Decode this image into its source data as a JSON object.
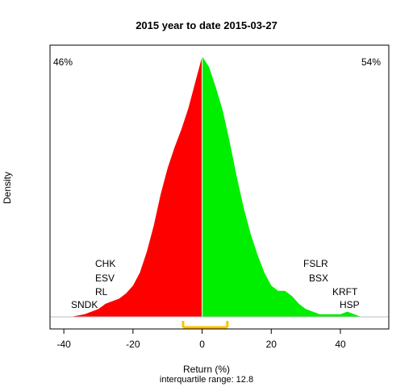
{
  "chart_data": {
    "type": "area",
    "title": "2015  year to date 2015-03-27",
    "xlabel": "Return (%)",
    "ylabel": "Density",
    "subtitle": "interquartile range: 12.8",
    "xlim": [
      -44,
      54
    ],
    "ylim": [
      0,
      1
    ],
    "x_ticks": [
      "-40",
      "-20",
      "0",
      "20",
      "40"
    ],
    "x_tick_values": [
      -40,
      -20,
      0,
      20,
      40
    ],
    "grid": false,
    "negative_share": "46%",
    "positive_share": "54%",
    "colors": {
      "negative": "#ff0000",
      "positive": "#00ee00",
      "iqr_bar": "#ffc000",
      "axis": "#000000",
      "baseline": "#bebebe"
    },
    "interquartile_range": {
      "low": -5.5,
      "high": 7.3,
      "value": 12.8
    },
    "density_curve": [
      {
        "x": -38,
        "y": 0.0
      },
      {
        "x": -34,
        "y": 0.01
      },
      {
        "x": -30,
        "y": 0.03
      },
      {
        "x": -28,
        "y": 0.05
      },
      {
        "x": -26,
        "y": 0.06
      },
      {
        "x": -24,
        "y": 0.07
      },
      {
        "x": -22,
        "y": 0.09
      },
      {
        "x": -20,
        "y": 0.12
      },
      {
        "x": -18,
        "y": 0.17
      },
      {
        "x": -16,
        "y": 0.25
      },
      {
        "x": -14,
        "y": 0.35
      },
      {
        "x": -12,
        "y": 0.47
      },
      {
        "x": -10,
        "y": 0.57
      },
      {
        "x": -8,
        "y": 0.65
      },
      {
        "x": -6,
        "y": 0.72
      },
      {
        "x": -4,
        "y": 0.8
      },
      {
        "x": -2,
        "y": 0.9
      },
      {
        "x": 0,
        "y": 1.0
      },
      {
        "x": 2,
        "y": 0.96
      },
      {
        "x": 4,
        "y": 0.88
      },
      {
        "x": 6,
        "y": 0.79
      },
      {
        "x": 8,
        "y": 0.67
      },
      {
        "x": 10,
        "y": 0.54
      },
      {
        "x": 12,
        "y": 0.42
      },
      {
        "x": 14,
        "y": 0.32
      },
      {
        "x": 16,
        "y": 0.24
      },
      {
        "x": 18,
        "y": 0.17
      },
      {
        "x": 20,
        "y": 0.12
      },
      {
        "x": 22,
        "y": 0.1
      },
      {
        "x": 24,
        "y": 0.1
      },
      {
        "x": 26,
        "y": 0.08
      },
      {
        "x": 28,
        "y": 0.05
      },
      {
        "x": 30,
        "y": 0.03
      },
      {
        "x": 32,
        "y": 0.02
      },
      {
        "x": 34,
        "y": 0.01
      },
      {
        "x": 36,
        "y": 0.01
      },
      {
        "x": 38,
        "y": 0.01
      },
      {
        "x": 40,
        "y": 0.01
      },
      {
        "x": 42,
        "y": 0.02
      },
      {
        "x": 44,
        "y": 0.01
      },
      {
        "x": 46,
        "y": 0.0
      },
      {
        "x": 48,
        "y": 0.0
      }
    ],
    "left_tickers": [
      "CHK",
      "ESV",
      "RL",
      "SNDK"
    ],
    "right_tickers": [
      "FSLR",
      "BSX",
      "KRFT",
      "HSP"
    ]
  }
}
